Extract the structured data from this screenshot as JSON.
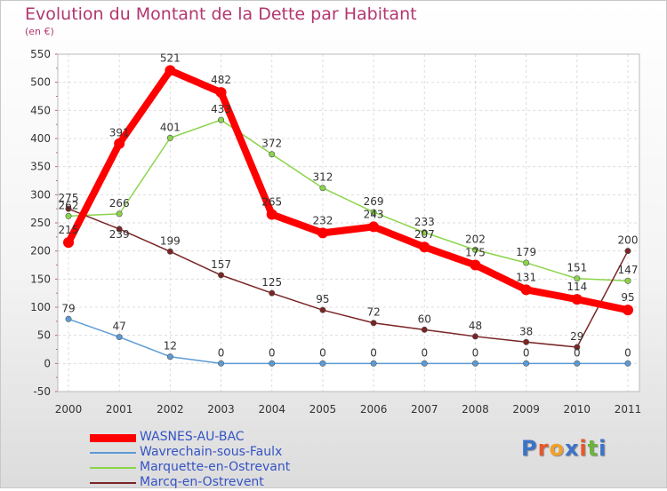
{
  "title": "Evolution du Montant de la Dette par Habitant",
  "subtitle": "(en €)",
  "logo_text": "Proxiti",
  "chart_data": {
    "type": "line",
    "title": "Evolution du Montant de la Dette par Habitant",
    "ylabel": "(en €)",
    "xlabel": "",
    "x": [
      "2000",
      "2001",
      "2002",
      "2003",
      "2004",
      "2005",
      "2006",
      "2007",
      "2008",
      "2009",
      "2010",
      "2011"
    ],
    "ylim": [
      -50,
      550
    ],
    "yticks": [
      "-50",
      "0",
      "50",
      "100",
      "150",
      "200",
      "250",
      "300",
      "350",
      "400",
      "450",
      "500",
      "550"
    ],
    "grid": true,
    "legend_position": "bottom-left",
    "series": [
      {
        "name": "WASNES-AU-BAC",
        "color": "#ff0000",
        "values": [
          215,
          391,
          521,
          482,
          265,
          232,
          243,
          207,
          175,
          131,
          114,
          95
        ],
        "labels": [
          "215",
          "391",
          "521",
          "482",
          "265",
          "232",
          "243",
          "207",
          "175",
          "131",
          "114",
          "95"
        ]
      },
      {
        "name": "Wavrechain-sous-Faulx",
        "color": "#5b9bd5",
        "values": [
          79,
          47,
          12,
          0,
          0,
          0,
          0,
          0,
          0,
          0,
          0,
          0
        ],
        "labels": [
          "79",
          "47",
          "12",
          "0",
          "0",
          "0",
          "0",
          "0",
          "0",
          "0",
          "0",
          "0"
        ]
      },
      {
        "name": "Marquette-en-Ostrevant",
        "color": "#8bd44a",
        "values": [
          262,
          266,
          401,
          433,
          372,
          312,
          269,
          233,
          202,
          179,
          151,
          147
        ],
        "labels": [
          "262",
          "266",
          "401",
          "433",
          "372",
          "312",
          "269",
          "233",
          "202",
          "179",
          "151",
          "147"
        ]
      },
      {
        "name": "Marcq-en-Ostrevent",
        "color": "#7a2424",
        "values": [
          275,
          239,
          199,
          157,
          125,
          95,
          72,
          60,
          48,
          38,
          29,
          200
        ],
        "labels": [
          "275",
          "239",
          "199",
          "157",
          "125",
          "95",
          "72",
          "60",
          "48",
          "38",
          "29",
          "200"
        ]
      }
    ]
  }
}
